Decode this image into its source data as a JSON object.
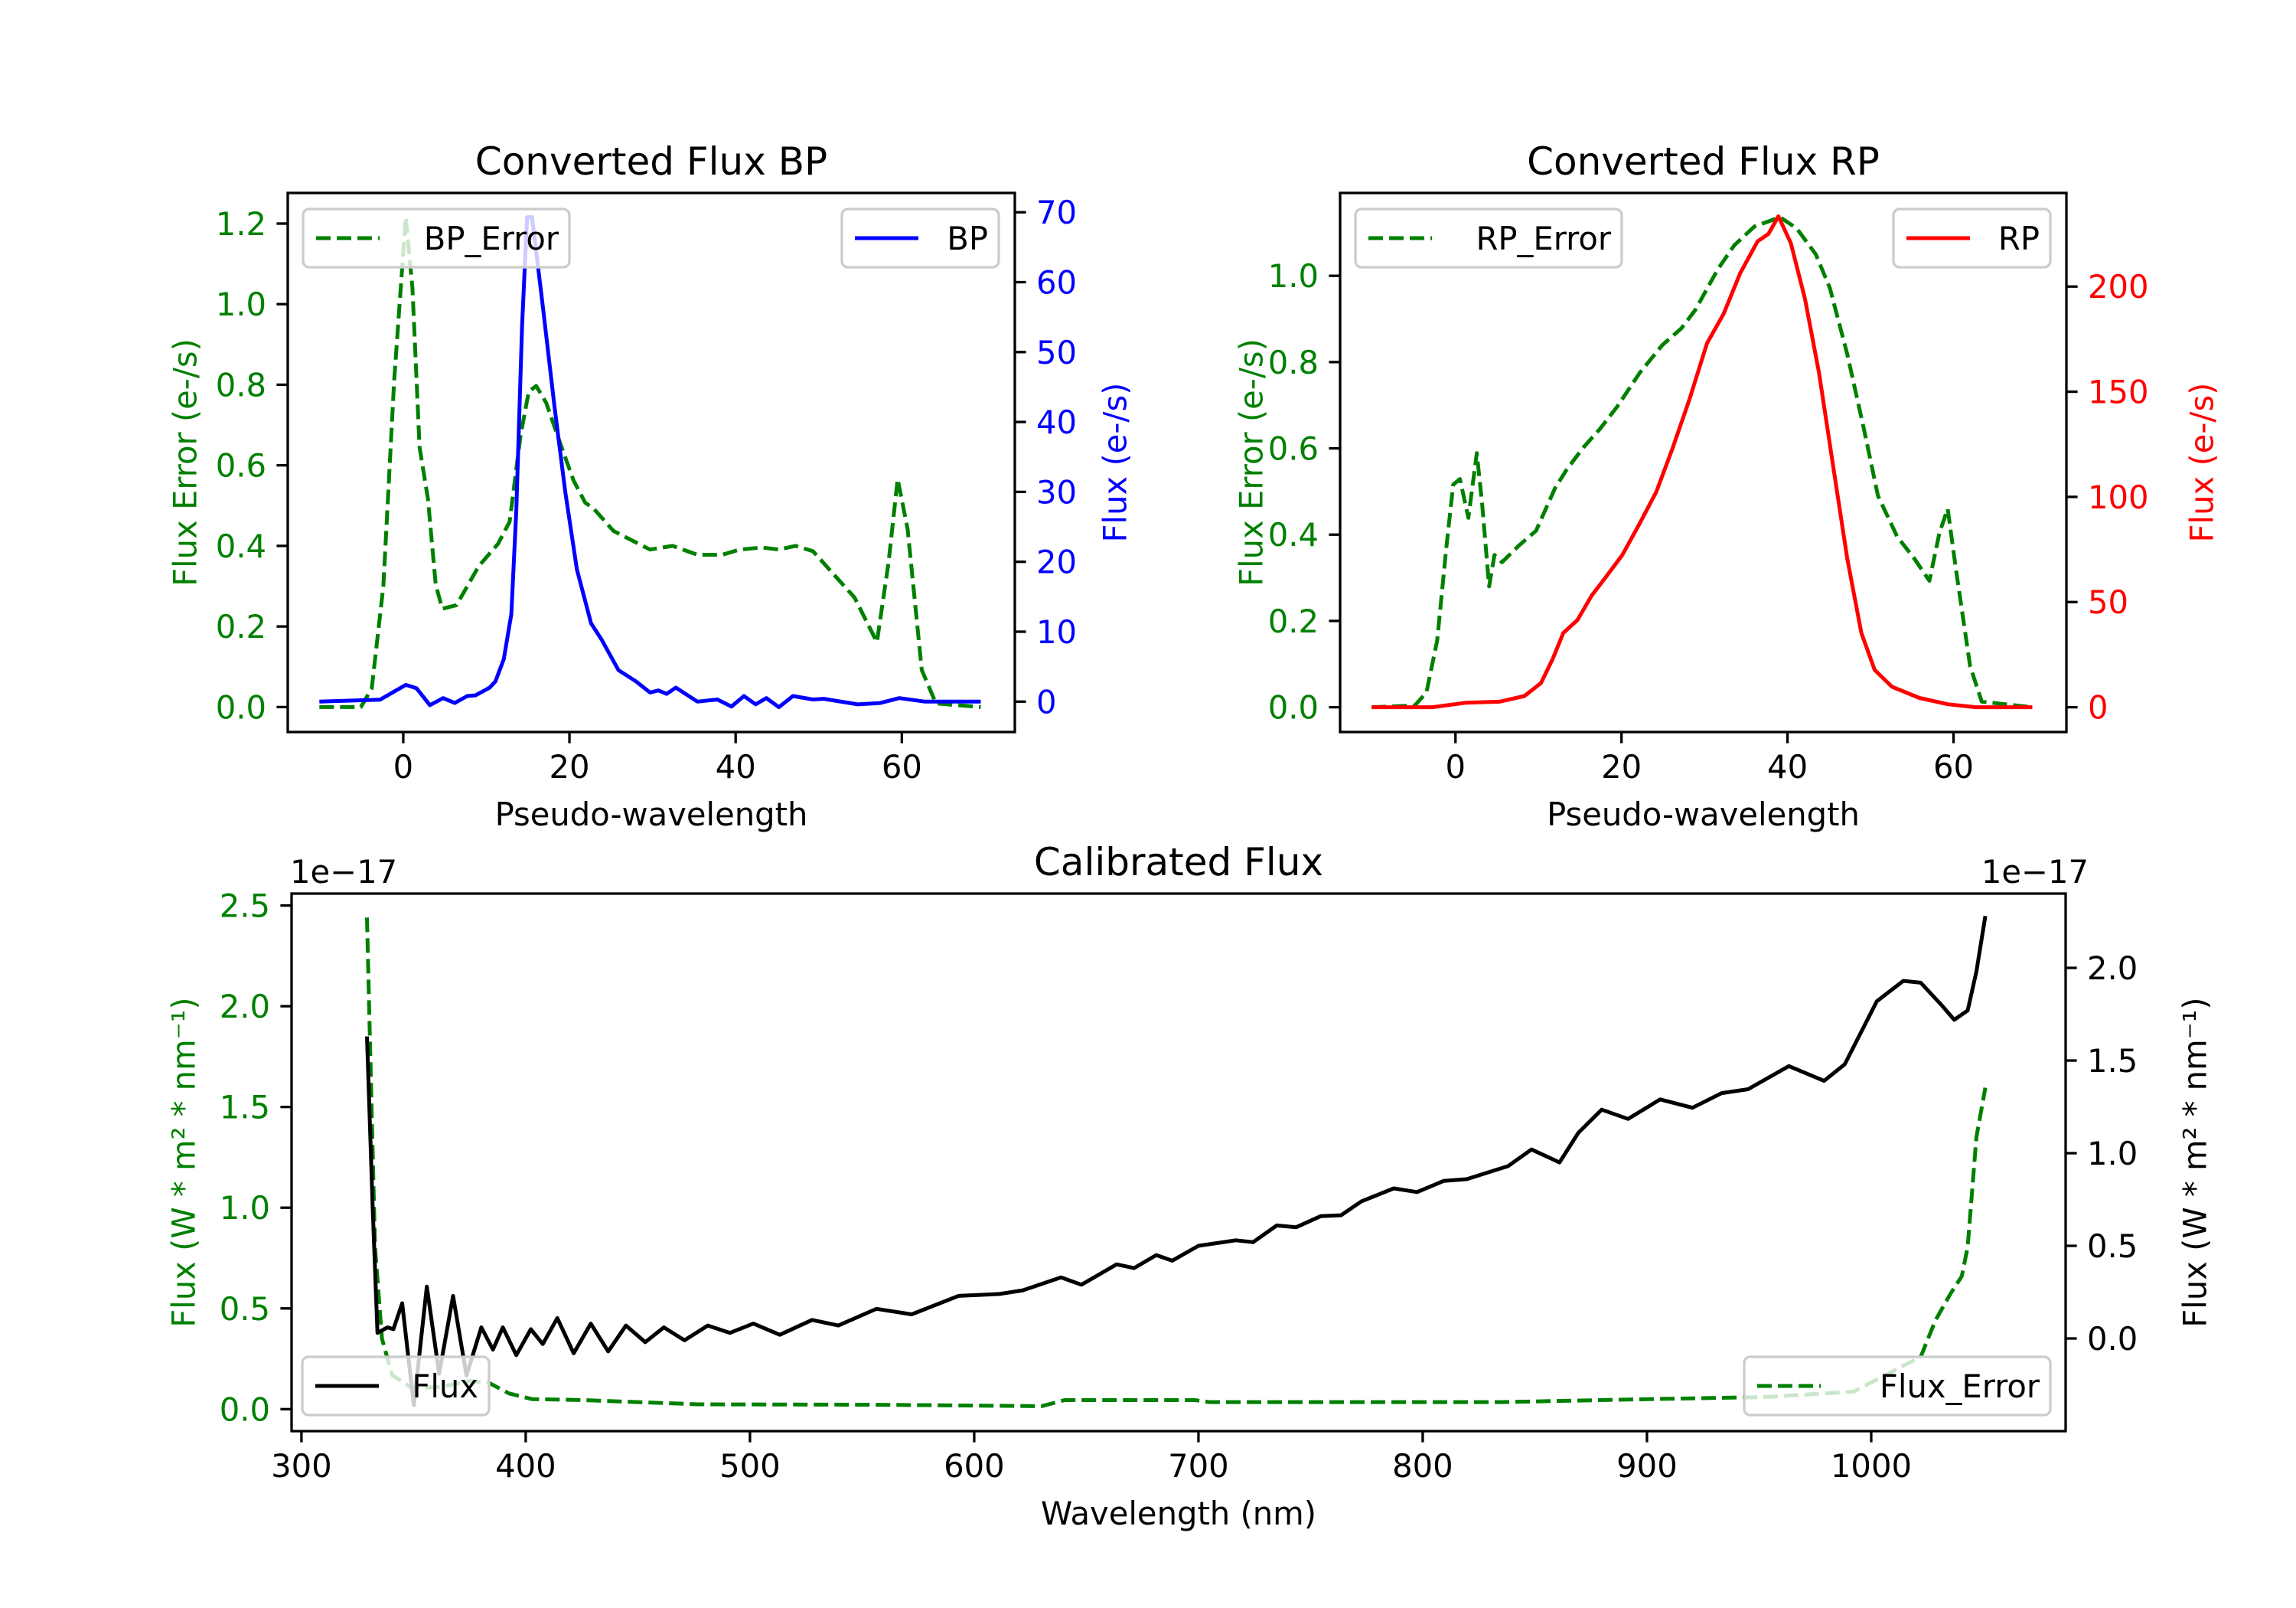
{
  "chart_data": [
    {
      "id": "bp",
      "type": "line",
      "title": "Converted Flux BP",
      "xlabel": "Pseudo-wavelength",
      "ylabel_left": "Flux Error (e-/s)",
      "ylabel_right": "Flux (e-/s)",
      "left_color": "#008000",
      "right_color": "#0000ff",
      "xlim": [
        -13.9,
        73.6
      ],
      "ylim_left": [
        -0.062,
        1.276
      ],
      "ylim_right": [
        -4.35,
        72.76
      ],
      "x_ticks": [
        0,
        20,
        40,
        60
      ],
      "x_tick_labels": [
        "0",
        "20",
        "40",
        "60"
      ],
      "y_left_ticks": [
        0,
        0.2,
        0.4,
        0.6,
        0.8,
        1.0,
        1.2
      ],
      "y_left_tick_labels": [
        "0.0",
        "0.2",
        "0.4",
        "0.6",
        "0.8",
        "1.0",
        "1.2"
      ],
      "y_right_ticks": [
        0,
        10,
        20,
        30,
        40,
        50,
        60,
        70
      ],
      "y_right_tick_labels": [
        "0",
        "10",
        "20",
        "30",
        "40",
        "50",
        "60",
        "70"
      ],
      "series": [
        {
          "name": "BP_Error",
          "axis": "left",
          "style": "dashed",
          "color": "#008000",
          "legend": "upper-left",
          "x": [
            -10.1,
            -5.1,
            -3.8,
            -2.4,
            -1.1,
            0.3,
            1.1,
            1.96,
            2.97,
            3.9,
            4.7,
            6.4,
            9.1,
            11.4,
            12.8,
            14.1,
            15.1,
            16.0,
            17.2,
            18.9,
            20.5,
            21.9,
            22.9,
            25.3,
            27.0,
            29.7,
            32.4,
            35.4,
            38.4,
            40.5,
            43.2,
            45.2,
            47.2,
            49.3,
            51.3,
            54.3,
            57.0,
            58.4,
            59.5,
            60.7,
            62.4,
            64.1,
            69.5
          ],
          "y": [
            0,
            0,
            0.046,
            0.3,
            0.81,
            1.216,
            1.04,
            0.645,
            0.516,
            0.304,
            0.244,
            0.253,
            0.35,
            0.405,
            0.46,
            0.672,
            0.783,
            0.797,
            0.755,
            0.654,
            0.562,
            0.507,
            0.493,
            0.437,
            0.419,
            0.391,
            0.4,
            0.378,
            0.378,
            0.391,
            0.396,
            0.391,
            0.4,
            0.387,
            0.341,
            0.272,
            0.161,
            0.359,
            0.566,
            0.442,
            0.092,
            0.009,
            0
          ]
        },
        {
          "name": "BP",
          "axis": "right",
          "style": "solid",
          "color": "#0000ff",
          "legend": "upper-right",
          "x": [
            -10.1,
            -2.8,
            0.3,
            1.6,
            3.2,
            4.8,
            6.2,
            7.7,
            8.7,
            10.4,
            11.1,
            12.1,
            13.0,
            13.6,
            14.3,
            14.9,
            15.5,
            16.8,
            18.2,
            19.5,
            20.9,
            22.6,
            23.9,
            25.9,
            28.0,
            29.7,
            30.7,
            31.7,
            32.8,
            35.4,
            37.8,
            39.5,
            41.0,
            42.4,
            43.7,
            45.2,
            46.9,
            49.3,
            50.6,
            54.7,
            57.4,
            59.7,
            62.8,
            69.5
          ],
          "y": [
            0,
            0.27,
            2.4,
            1.9,
            -0.5,
            0.5,
            -0.2,
            0.8,
            0.9,
            2.0,
            2.9,
            6.1,
            12.5,
            27.3,
            53.9,
            69.3,
            69.3,
            56.5,
            42.2,
            30,
            18.9,
            11.2,
            8.8,
            4.5,
            2.9,
            1.3,
            1.6,
            1.1,
            2.0,
            0,
            0.3,
            -0.7,
            0.8,
            -0.4,
            0.5,
            -0.8,
            0.8,
            0.3,
            0.4,
            -0.4,
            -0.2,
            0.5,
            0,
            0
          ]
        }
      ]
    },
    {
      "id": "rp",
      "type": "line",
      "title": "Converted Flux RP",
      "xlabel": "Pseudo-wavelength",
      "ylabel_left": "Flux Error (e-/s)",
      "ylabel_right": "Flux (e-/s)",
      "left_color": "#008000",
      "right_color": "#ff0000",
      "xlim": [
        -13.9,
        73.6
      ],
      "ylim_left": [
        -0.0575,
        1.192
      ],
      "ylim_right": [
        -11.8,
        244.5
      ],
      "x_ticks": [
        0,
        20,
        40,
        60
      ],
      "x_tick_labels": [
        "0",
        "20",
        "40",
        "60"
      ],
      "y_left_ticks": [
        0,
        0.2,
        0.4,
        0.6,
        0.8,
        1.0
      ],
      "y_left_tick_labels": [
        "0.0",
        "0.2",
        "0.4",
        "0.6",
        "0.8",
        "1.0"
      ],
      "y_right_ticks": [
        0,
        50,
        100,
        150,
        200
      ],
      "y_right_tick_labels": [
        "0",
        "50",
        "100",
        "150",
        "200"
      ],
      "series": [
        {
          "name": "RP_Error",
          "axis": "left",
          "style": "dashed",
          "color": "#008000",
          "legend": "upper-left",
          "x": [
            -10.1,
            -4.9,
            -3.5,
            -2.2,
            -1.1,
            -0.27,
            0.54,
            1.55,
            2.57,
            3.2,
            4.05,
            4.7,
            5.6,
            7.6,
            9.7,
            12.0,
            13.4,
            15.4,
            17.4,
            19.5,
            22.2,
            24.9,
            27.2,
            28.9,
            31.6,
            33.6,
            36.0,
            39.1,
            41.1,
            43.4,
            45.1,
            47.2,
            49.2,
            50.9,
            53.2,
            55.3,
            57.1,
            58.3,
            59.3,
            60.3,
            62.0,
            63.4,
            69.5
          ],
          "y": [
            0,
            0.004,
            0.034,
            0.155,
            0.37,
            0.516,
            0.529,
            0.439,
            0.589,
            0.473,
            0.28,
            0.353,
            0.336,
            0.374,
            0.409,
            0.508,
            0.551,
            0.602,
            0.645,
            0.697,
            0.775,
            0.839,
            0.878,
            0.921,
            1.015,
            1.071,
            1.114,
            1.136,
            1.11,
            1.05,
            0.972,
            0.818,
            0.645,
            0.49,
            0.396,
            0.344,
            0.293,
            0.404,
            0.46,
            0.318,
            0.095,
            0.013,
            0
          ]
        },
        {
          "name": "RP",
          "axis": "right",
          "style": "solid",
          "color": "#ff0000",
          "legend": "upper-right",
          "x": [
            -10.1,
            -2.8,
            1.2,
            5.3,
            8.3,
            10.3,
            11.7,
            13.0,
            14.7,
            16.4,
            18.1,
            20.1,
            22.2,
            24.2,
            26.2,
            28.2,
            30.3,
            32.3,
            34.3,
            36.4,
            37.7,
            38.9,
            40.4,
            42.1,
            43.8,
            45.5,
            47.2,
            48.9,
            50.5,
            52.6,
            55.9,
            59.3,
            62.7,
            69.5
          ],
          "y": [
            0,
            0,
            2.1,
            2.6,
            5.3,
            11.5,
            22.9,
            35.3,
            41.5,
            53,
            61.8,
            72.4,
            87.4,
            102.4,
            123.6,
            146.5,
            173,
            187,
            206.4,
            221.5,
            225,
            233.4,
            220.7,
            194.2,
            158.9,
            114.7,
            70.6,
            35.3,
            17.7,
            9.7,
            4.4,
            1.4,
            0,
            0
          ]
        }
      ]
    },
    {
      "id": "cal",
      "type": "line",
      "title": "Calibrated Flux",
      "xlabel": "Wavelength (nm)",
      "ylabel_left": "Flux (W * m² * nm⁻¹)",
      "ylabel_right": "Flux (W * m² * nm⁻¹)",
      "left_color": "#008000",
      "right_color": "#000000",
      "offset_left": "1e−17",
      "offset_right": "1e−17",
      "xlim": [
        295.6,
        1086.7
      ],
      "ylim_left": [
        -0.109,
        2.559
      ],
      "ylim_right": [
        -0.5,
        2.401
      ],
      "x_ticks": [
        300,
        400,
        500,
        600,
        700,
        800,
        900,
        1000
      ],
      "x_tick_labels": [
        "300",
        "400",
        "500",
        "600",
        "700",
        "800",
        "900",
        "1000"
      ],
      "y_left_ticks": [
        0,
        0.5,
        1.0,
        1.5,
        2.0,
        2.5
      ],
      "y_left_tick_labels": [
        "0.0",
        "0.5",
        "1.0",
        "1.5",
        "2.0",
        "2.5"
      ],
      "y_right_ticks": [
        0,
        0.5,
        1.0,
        1.5,
        2.0
      ],
      "y_right_tick_labels": [
        "0.0",
        "0.5",
        "1.0",
        "1.5",
        "2.0"
      ],
      "series": [
        {
          "name": "Flux",
          "axis": "right",
          "style": "solid",
          "color": "#000000",
          "legend": "lower-left",
          "x": [
            329.2,
            331.8,
            333.9,
            338.4,
            341.0,
            344.9,
            350.1,
            355.9,
            361.4,
            367.6,
            373.6,
            380.2,
            385.4,
            389.8,
            395.8,
            402.3,
            407.6,
            414.1,
            421.4,
            429.0,
            436.8,
            444.7,
            453.3,
            461.6,
            470.8,
            481.2,
            491.1,
            501.5,
            513.3,
            527.7,
            539.4,
            556.4,
            572.1,
            593.0,
            611.3,
            621.7,
            638.7,
            647.8,
            663.5,
            671.3,
            681.2,
            688.3,
            700.0,
            716.6,
            724.4,
            734.9,
            743.5,
            754.5,
            763.6,
            772.7,
            787.1,
            797.5,
            809.3,
            819.7,
            832.8,
            838.0,
            848.5,
            861.0,
            869.4,
            879.8,
            891.6,
            905.9,
            920.3,
            933.3,
            945.1,
            963.3,
            979.0,
            988.2,
            1002.5,
            1014.3,
            1022.1,
            1031.3,
            1037.0,
            1043.0,
            1046.9,
            1050.9
          ],
          "y": [
            1.63,
            0.69,
            0.03,
            0.06,
            0.05,
            0.19,
            -0.36,
            0.28,
            -0.19,
            0.23,
            -0.2,
            0.06,
            -0.06,
            0.06,
            -0.09,
            0.05,
            -0.03,
            0.11,
            -0.08,
            0.08,
            -0.07,
            0.07,
            -0.02,
            0.06,
            -0.01,
            0.07,
            0.03,
            0.08,
            0.02,
            0.1,
            0.07,
            0.16,
            0.13,
            0.23,
            0.24,
            0.26,
            0.33,
            0.29,
            0.4,
            0.38,
            0.45,
            0.42,
            0.5,
            0.53,
            0.52,
            0.61,
            0.6,
            0.66,
            0.665,
            0.74,
            0.81,
            0.79,
            0.85,
            0.86,
            0.91,
            0.93,
            1.02,
            0.95,
            1.11,
            1.235,
            1.185,
            1.29,
            1.245,
            1.324,
            1.345,
            1.47,
            1.39,
            1.48,
            1.82,
            1.93,
            1.92,
            1.8,
            1.72,
            1.77,
            1.98,
            2.28
          ]
        },
        {
          "name": "Flux_Error",
          "axis": "left",
          "style": "dashed",
          "color": "#008000",
          "legend": "lower-right",
          "x": [
            329.2,
            331.2,
            332.8,
            335.9,
            340.4,
            349.3,
            362,
            374.8,
            383.7,
            392.6,
            402.8,
            425.8,
            476.9,
            553.5,
            630.1,
            640.3,
            698.5,
            704.8,
            835.4,
            900.7,
            952.9,
            992.1,
            1022.1,
            1028.6,
            1035.2,
            1040.4,
            1043.0,
            1046.9,
            1050.9
          ],
          "y": [
            2.44,
            1.53,
            0.805,
            0.35,
            0.17,
            0.105,
            0.11,
            0.14,
            0.13,
            0.078,
            0.05,
            0.045,
            0.024,
            0.022,
            0.015,
            0.045,
            0.045,
            0.035,
            0.035,
            0.05,
            0.06,
            0.087,
            0.26,
            0.44,
            0.57,
            0.66,
            0.805,
            1.35,
            1.595
          ]
        }
      ]
    }
  ]
}
